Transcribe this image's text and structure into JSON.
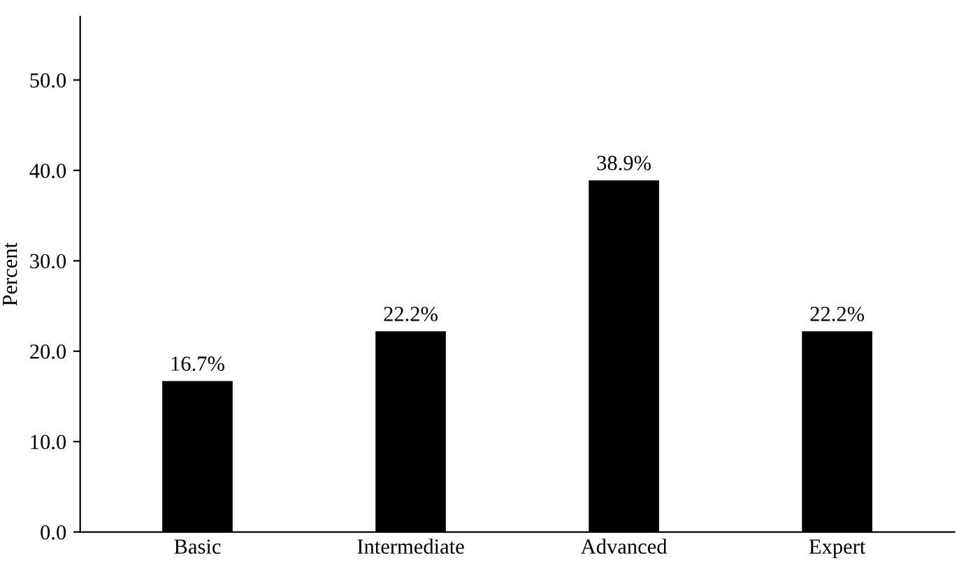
{
  "chart_data": {
    "type": "bar",
    "ylabel": "Percent",
    "categories": [
      "Basic",
      "Intermediate",
      "Advanced",
      "Expert"
    ],
    "values": [
      16.7,
      22.2,
      38.9,
      22.2
    ],
    "value_labels": [
      "16.7%",
      "22.2%",
      "38.9%",
      "22.2%"
    ],
    "color": "#000000",
    "ylim": [
      0,
      57
    ],
    "yticks": [
      {
        "value": 0,
        "label": "0.0"
      },
      {
        "value": 10,
        "label": "10.0"
      },
      {
        "value": 20,
        "label": "20.0"
      },
      {
        "value": 30,
        "label": "30.0"
      },
      {
        "value": 40,
        "label": "40.0"
      },
      {
        "value": 50,
        "label": "50.0"
      }
    ],
    "grid": false
  }
}
